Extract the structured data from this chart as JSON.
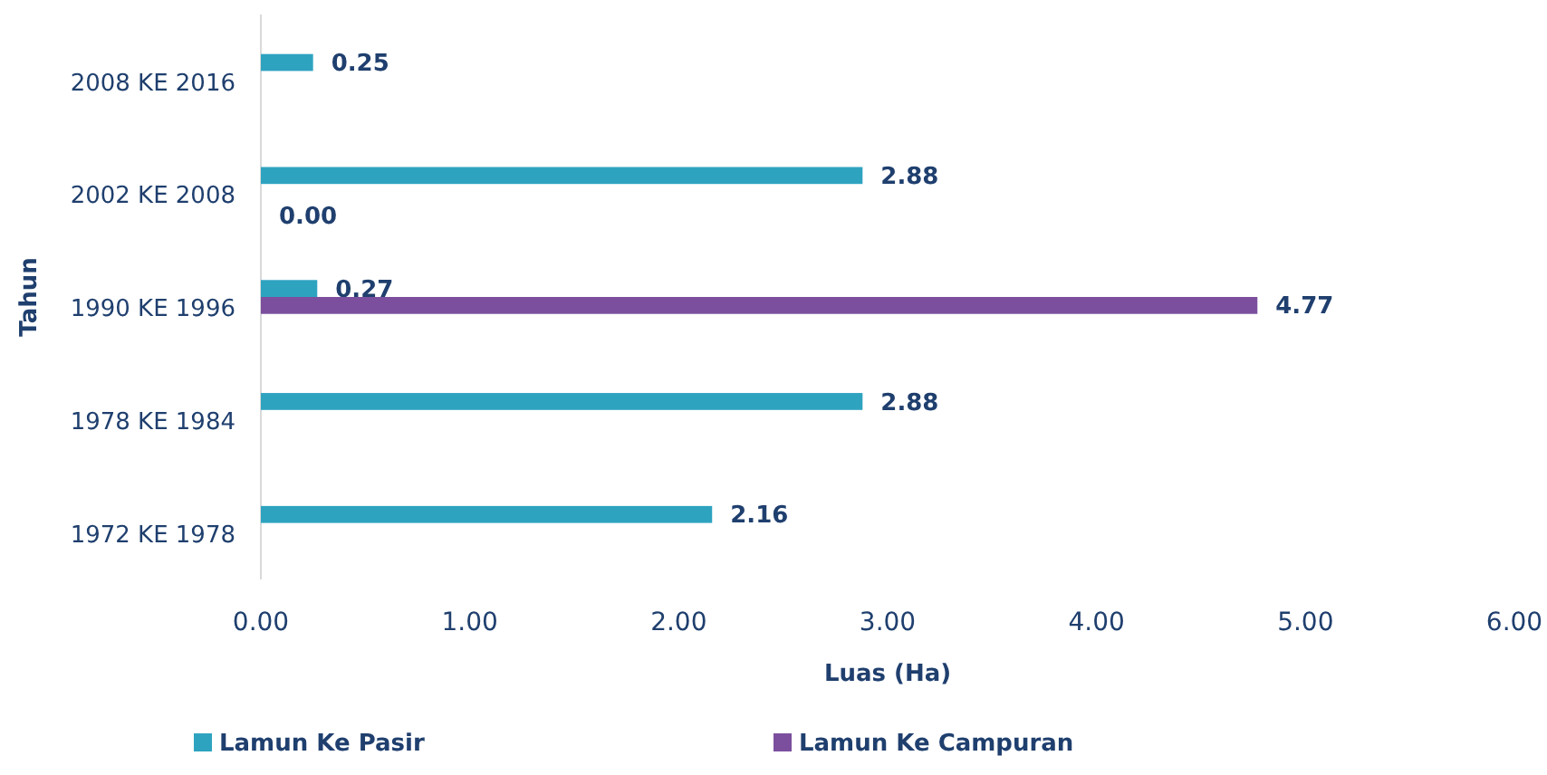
{
  "chart_data": {
    "type": "bar",
    "orientation": "horizontal",
    "ylabel": "Tahun",
    "xlabel": "Luas (Ha)",
    "categories": [
      "2008 KE 2016",
      "2002 KE 2008",
      "1990 KE 1996",
      "1978 KE 1984",
      "1972 KE 1978"
    ],
    "series": [
      {
        "name": "Lamun Ke Pasir",
        "color": "#2ea3c0",
        "values": [
          0.25,
          2.88,
          0.27,
          2.88,
          2.16
        ],
        "value_labels": [
          "0.25",
          "2.88",
          "0.27",
          "2.88",
          "2.16"
        ]
      },
      {
        "name": "Lamun Ke Campuran",
        "color": "#7b4f9e",
        "values": [
          null,
          0.0,
          4.77,
          null,
          null
        ],
        "value_labels": [
          null,
          "0.00",
          "4.77",
          null,
          null
        ]
      }
    ],
    "xlim": [
      0,
      6
    ],
    "xticks": [
      {
        "value": 0,
        "label": "0.00"
      },
      {
        "value": 1,
        "label": "1.00"
      },
      {
        "value": 2,
        "label": "2.00"
      },
      {
        "value": 3,
        "label": "3.00"
      },
      {
        "value": 4,
        "label": "4.00"
      },
      {
        "value": 5,
        "label": "5.00"
      },
      {
        "value": 6,
        "label": "6.00"
      }
    ],
    "grid": false,
    "legend": "bottom"
  }
}
